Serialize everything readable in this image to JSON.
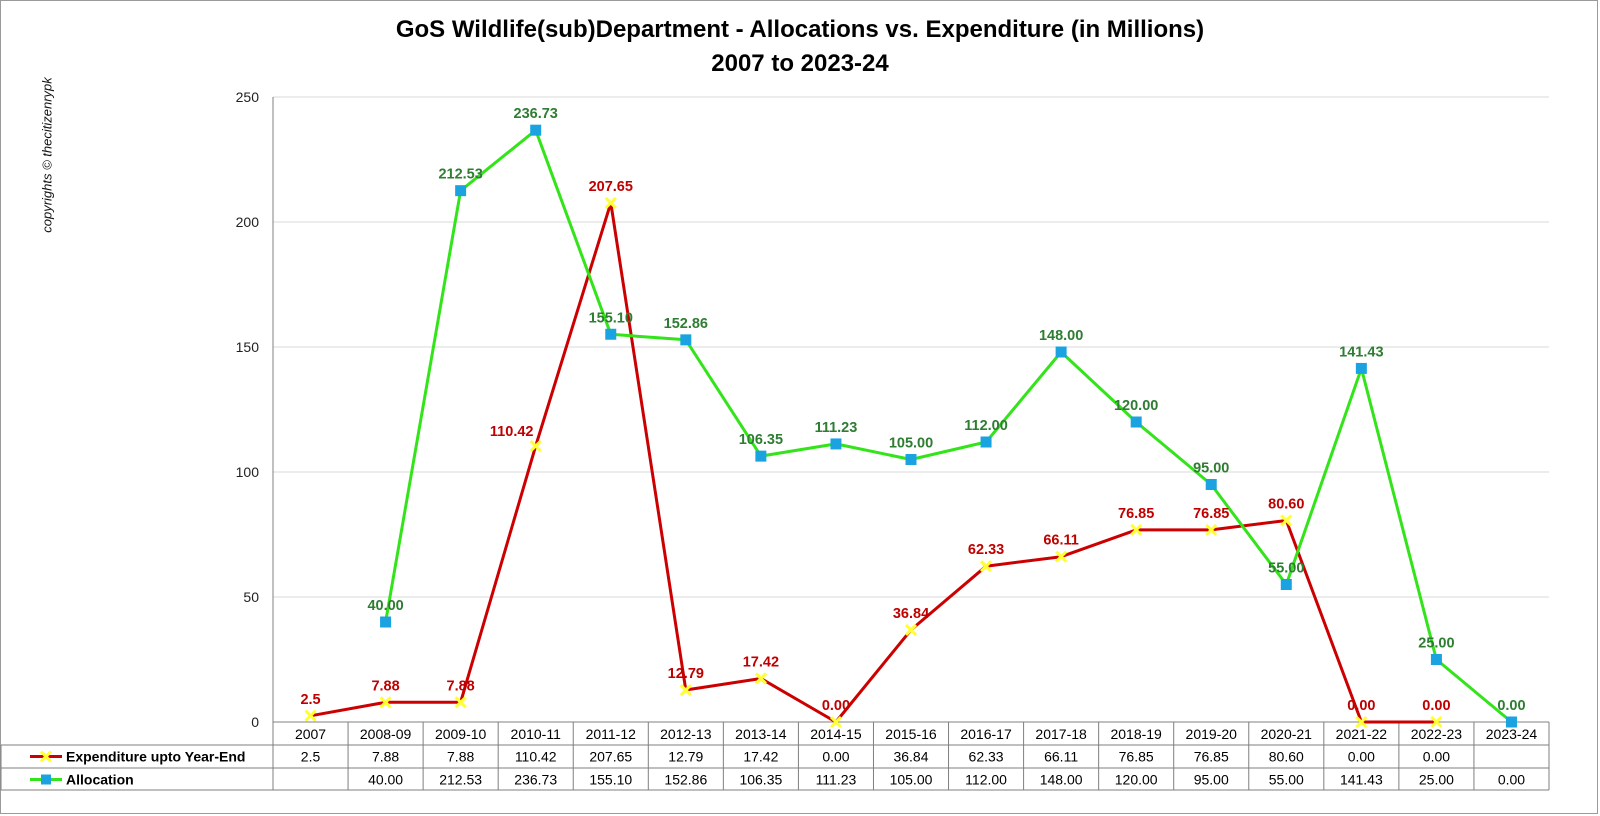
{
  "title_line1": "GoS Wildlife(sub)Department - Allocations vs. Expenditure (in Millions)",
  "title_line2": "2007 to 2023-24",
  "copyright": "copyrights © thecitizenrypk",
  "chart_data": {
    "type": "line",
    "title": "GoS Wildlife(sub)Department - Allocations vs. Expenditure (in Millions) 2007 to 2023-24",
    "categories": [
      "2007",
      "2008-09",
      "2009-10",
      "2010-11",
      "2011-12",
      "2012-13",
      "2013-14",
      "2014-15",
      "2015-16",
      "2016-17",
      "2017-18",
      "2018-19",
      "2019-20",
      "2020-21",
      "2021-22",
      "2022-23",
      "2023-24"
    ],
    "ylim": [
      0,
      250
    ],
    "yticks": [
      0,
      50,
      100,
      150,
      200,
      250
    ],
    "grid": true,
    "legend_placement": "data-table",
    "series": [
      {
        "name": "Expenditure upto Year-End",
        "color": "#cc0000",
        "marker_color": "#ffff33",
        "label_color": "#c00000",
        "marker": "x",
        "values": [
          2.5,
          7.88,
          7.88,
          110.42,
          207.65,
          12.79,
          17.42,
          0.0,
          36.84,
          62.33,
          66.11,
          76.85,
          76.85,
          80.6,
          0.0,
          0.0,
          null
        ],
        "labels": [
          "2.5",
          "7.88",
          "7.88",
          "110.42",
          "207.65",
          "12.79",
          "17.42",
          "0.00",
          "36.84",
          "62.33",
          "66.11",
          "76.85",
          "76.85",
          "80.60",
          "0.00",
          "0.00",
          ""
        ]
      },
      {
        "name": "Allocation",
        "color": "#33e41a",
        "marker_color": "#1aa3e0",
        "label_color": "#2e7d32",
        "marker": "square",
        "values": [
          null,
          40.0,
          212.53,
          236.73,
          155.1,
          152.86,
          106.35,
          111.23,
          105.0,
          112.0,
          148.0,
          120.0,
          95.0,
          55.0,
          141.43,
          25.0,
          0.0
        ],
        "labels": [
          "",
          "40.00",
          "212.53",
          "236.73",
          "155.10",
          "152.86",
          "106.35",
          "111.23",
          "105.00",
          "112.00",
          "148.00",
          "120.00",
          "95.00",
          "55.00",
          "141.43",
          "25.00",
          "0.00"
        ]
      }
    ]
  }
}
